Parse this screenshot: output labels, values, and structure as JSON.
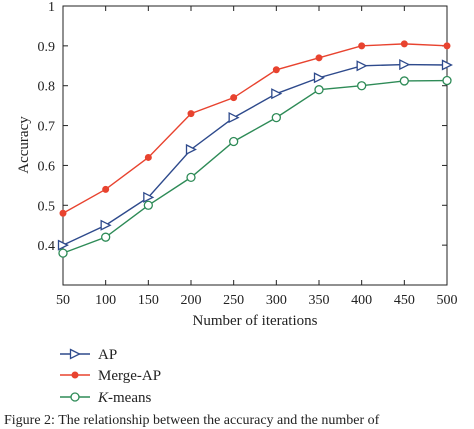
{
  "chart_data": {
    "type": "line",
    "xlabel": "Number of iterations",
    "ylabel": "Accuracy",
    "x": [
      50,
      100,
      150,
      200,
      250,
      300,
      350,
      400,
      450,
      500
    ],
    "xlim": [
      50,
      500
    ],
    "ylim": [
      0.3,
      1.0
    ],
    "xticks": [
      "50",
      "100",
      "150",
      "200",
      "250",
      "300",
      "350",
      "400",
      "450",
      "500"
    ],
    "yticks": [
      "0.4",
      "0.5",
      "0.6",
      "0.7",
      "0.8",
      "0.9",
      "1"
    ],
    "grid": false,
    "legend_position": "bottom-left, below plot",
    "series": [
      {
        "name": "AP",
        "color": "#2e4a8c",
        "marker": "triangle-right",
        "values": [
          0.4,
          0.45,
          0.52,
          0.64,
          0.72,
          0.78,
          0.82,
          0.85,
          0.853,
          0.852
        ]
      },
      {
        "name": "Merge-AP",
        "color": "#e8432f",
        "marker": "dot",
        "values": [
          0.48,
          0.54,
          0.62,
          0.73,
          0.77,
          0.84,
          0.87,
          0.9,
          0.905,
          0.9
        ]
      },
      {
        "name": "K-means",
        "color": "#2e8b57",
        "marker": "circle",
        "values": [
          0.38,
          0.42,
          0.5,
          0.57,
          0.66,
          0.72,
          0.79,
          0.8,
          0.812,
          0.813
        ]
      }
    ]
  },
  "legend": {
    "ap": "AP",
    "merge_ap": "Merge-AP",
    "kmeans_k": "K",
    "kmeans_rest": "-means"
  },
  "caption": "Figure 2: The relationship between the accuracy and the number of"
}
